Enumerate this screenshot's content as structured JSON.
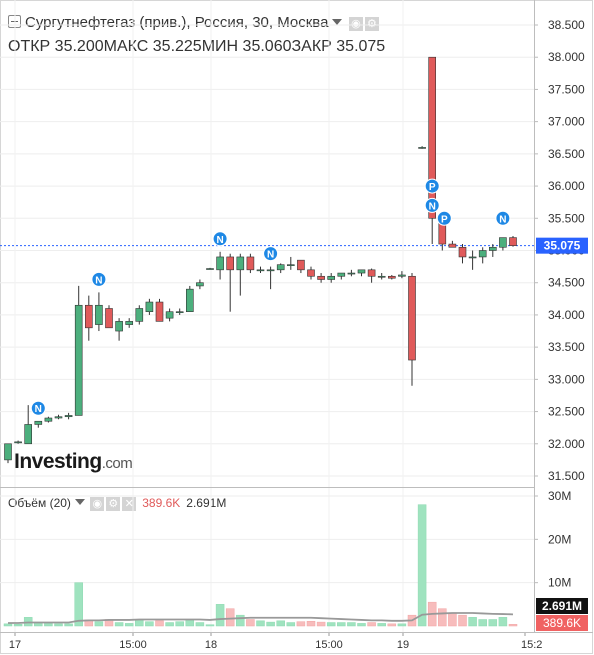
{
  "header": {
    "title": "Сургутнефтегаз (прив.), Россия, 30, Москва",
    "ohlc": [
      {
        "label": "ОТКР",
        "value": "35.200"
      },
      {
        "label": "МАКС",
        "value": "35.225"
      },
      {
        "label": "МИН",
        "value": "35.060"
      },
      {
        "label": "ЗАКР",
        "value": "35.075"
      }
    ]
  },
  "volume_legend": {
    "label": "Объём (20)",
    "value_a": "389.6K",
    "value_b": "2.691M"
  },
  "logo": {
    "text": "Investing",
    "suffix": ".com"
  },
  "colors": {
    "up": "#4caf7d",
    "down": "#e05a5a",
    "vol_up": "#9fe3bf",
    "vol_down": "#f7bcbc",
    "ma": "#999999",
    "last": "#2962ff"
  },
  "chart_data": [
    {
      "type": "candlestick",
      "price_axis": {
        "ticks": [
          "38.500",
          "38.000",
          "37.500",
          "37.000",
          "36.500",
          "36.000",
          "35.500",
          "35.000",
          "34.500",
          "34.000",
          "33.500",
          "33.000",
          "32.500",
          "32.000",
          "31.500"
        ],
        "range": [
          31.25,
          38.75
        ]
      },
      "time_axis": {
        "labels": [
          "17",
          "15:00",
          "18",
          "15:00",
          "19",
          "15:2"
        ]
      },
      "last_price": {
        "value": 35.075,
        "label": "35.075"
      },
      "candles": [
        {
          "o": 31.75,
          "h": 32.0,
          "l": 31.7,
          "c": 32.0
        },
        {
          "o": 32.03,
          "h": 32.05,
          "l": 32.0,
          "c": 32.03
        },
        {
          "o": 32.0,
          "h": 32.6,
          "l": 32.0,
          "c": 32.3
        },
        {
          "o": 32.3,
          "h": 32.35,
          "l": 32.25,
          "c": 32.35
        },
        {
          "o": 32.35,
          "h": 32.42,
          "l": 32.33,
          "c": 32.4
        },
        {
          "o": 32.4,
          "h": 32.45,
          "l": 32.38,
          "c": 32.42
        },
        {
          "o": 32.42,
          "h": 32.48,
          "l": 32.38,
          "c": 32.44
        },
        {
          "o": 32.44,
          "h": 34.45,
          "l": 32.44,
          "c": 34.15
        },
        {
          "o": 34.15,
          "h": 34.3,
          "l": 33.6,
          "c": 33.8
        },
        {
          "o": 33.85,
          "h": 34.35,
          "l": 33.75,
          "c": 34.15
        },
        {
          "o": 34.1,
          "h": 34.15,
          "l": 33.8,
          "c": 33.8
        },
        {
          "o": 33.75,
          "h": 33.95,
          "l": 33.6,
          "c": 33.9
        },
        {
          "o": 33.85,
          "h": 33.95,
          "l": 33.8,
          "c": 33.9
        },
        {
          "o": 33.9,
          "h": 34.15,
          "l": 33.85,
          "c": 34.1
        },
        {
          "o": 34.05,
          "h": 34.25,
          "l": 34.0,
          "c": 34.2
        },
        {
          "o": 34.2,
          "h": 34.25,
          "l": 33.9,
          "c": 33.9
        },
        {
          "o": 33.95,
          "h": 34.1,
          "l": 33.9,
          "c": 34.05
        },
        {
          "o": 34.05,
          "h": 34.1,
          "l": 34.0,
          "c": 34.05
        },
        {
          "o": 34.05,
          "h": 34.45,
          "l": 34.05,
          "c": 34.4
        },
        {
          "o": 34.45,
          "h": 34.55,
          "l": 34.4,
          "c": 34.5
        },
        {
          "o": 34.72,
          "h": 34.73,
          "l": 34.71,
          "c": 34.72
        },
        {
          "o": 34.7,
          "h": 34.98,
          "l": 34.55,
          "c": 34.9
        },
        {
          "o": 34.9,
          "h": 34.95,
          "l": 34.05,
          "c": 34.7
        },
        {
          "o": 34.7,
          "h": 34.95,
          "l": 34.3,
          "c": 34.9
        },
        {
          "o": 34.9,
          "h": 34.95,
          "l": 34.65,
          "c": 34.7
        },
        {
          "o": 34.7,
          "h": 34.75,
          "l": 34.65,
          "c": 34.7
        },
        {
          "o": 34.7,
          "h": 34.75,
          "l": 34.4,
          "c": 34.7
        },
        {
          "o": 34.7,
          "h": 34.8,
          "l": 34.65,
          "c": 34.78
        },
        {
          "o": 34.78,
          "h": 34.9,
          "l": 34.7,
          "c": 34.78
        },
        {
          "o": 34.85,
          "h": 34.85,
          "l": 34.65,
          "c": 34.7
        },
        {
          "o": 34.7,
          "h": 34.75,
          "l": 34.55,
          "c": 34.6
        },
        {
          "o": 34.6,
          "h": 34.65,
          "l": 34.5,
          "c": 34.55
        },
        {
          "o": 34.55,
          "h": 34.65,
          "l": 34.5,
          "c": 34.6
        },
        {
          "o": 34.6,
          "h": 34.65,
          "l": 34.55,
          "c": 34.65
        },
        {
          "o": 34.65,
          "h": 34.7,
          "l": 34.6,
          "c": 34.65
        },
        {
          "o": 34.65,
          "h": 34.7,
          "l": 34.6,
          "c": 34.7
        },
        {
          "o": 34.7,
          "h": 34.72,
          "l": 34.5,
          "c": 34.6
        },
        {
          "o": 34.6,
          "h": 34.65,
          "l": 34.55,
          "c": 34.6
        },
        {
          "o": 34.6,
          "h": 34.62,
          "l": 34.55,
          "c": 34.57
        },
        {
          "o": 34.6,
          "h": 34.68,
          "l": 34.57,
          "c": 34.62
        },
        {
          "o": 34.6,
          "h": 34.65,
          "l": 32.9,
          "c": 33.3
        },
        {
          "o": 36.6,
          "h": 36.62,
          "l": 36.58,
          "c": 36.6
        },
        {
          "o": 38.0,
          "h": 38.0,
          "l": 35.1,
          "c": 35.5
        },
        {
          "o": 35.45,
          "h": 35.6,
          "l": 35.0,
          "c": 35.1
        },
        {
          "o": 35.1,
          "h": 35.15,
          "l": 35.05,
          "c": 35.05
        },
        {
          "o": 35.05,
          "h": 35.1,
          "l": 34.8,
          "c": 34.9
        },
        {
          "o": 34.9,
          "h": 35.0,
          "l": 34.7,
          "c": 34.9
        },
        {
          "o": 34.9,
          "h": 35.05,
          "l": 34.8,
          "c": 35.0
        },
        {
          "o": 35.0,
          "h": 35.1,
          "l": 34.9,
          "c": 35.05
        },
        {
          "o": 35.05,
          "h": 35.2,
          "l": 35.0,
          "c": 35.2
        },
        {
          "o": 35.2,
          "h": 35.225,
          "l": 35.06,
          "c": 35.075
        }
      ],
      "event_markers": [
        {
          "bar": 3,
          "label": "N"
        },
        {
          "bar": 9,
          "label": "N"
        },
        {
          "bar": 21,
          "label": "N"
        },
        {
          "bar": 26,
          "label": "N"
        },
        {
          "bar": 42,
          "label": "P",
          "above": 36.0
        },
        {
          "bar": 42,
          "label": "N",
          "above": 35.7
        },
        {
          "bar": 43,
          "label": "P",
          "above": 35.5
        },
        {
          "bar": 49,
          "label": "N",
          "above": 35.5
        }
      ]
    },
    {
      "type": "bar",
      "volume_axis": {
        "ticks": [
          "30M",
          "20M",
          "10M"
        ],
        "range": [
          0,
          31
        ]
      },
      "current_volume": {
        "value": 2.691,
        "label": "2.691M"
      },
      "current_volume_alt": {
        "value": 0.3896,
        "label": "389.6K"
      },
      "volumes": [
        0.5,
        0.4,
        2.0,
        0.9,
        0.6,
        0.5,
        0.5,
        10.0,
        1.4,
        1.0,
        1.5,
        0.8,
        0.6,
        1.4,
        1.0,
        1.2,
        0.8,
        1.0,
        1.5,
        0.8,
        0.3,
        5.0,
        4.0,
        2.5,
        1.5,
        1.2,
        0.9,
        1.2,
        0.8,
        1.0,
        1.1,
        0.9,
        0.8,
        0.8,
        0.8,
        0.6,
        0.8,
        0.6,
        0.5,
        0.5,
        2.5,
        28.0,
        5.5,
        4.0,
        3.0,
        2.5,
        2.0,
        1.5,
        1.5,
        2.0,
        0.3896
      ],
      "moving_average": [
        0.7,
        0.7,
        0.8,
        0.8,
        0.8,
        0.8,
        0.8,
        1.2,
        1.3,
        1.3,
        1.4,
        1.4,
        1.4,
        1.5,
        1.5,
        1.5,
        1.5,
        1.5,
        1.5,
        1.5,
        1.4,
        1.6,
        1.7,
        1.8,
        1.9,
        1.9,
        1.9,
        1.9,
        1.9,
        1.9,
        1.9,
        1.8,
        1.7,
        1.6,
        1.5,
        1.4,
        1.3,
        1.3,
        1.2,
        1.2,
        1.3,
        2.6,
        2.8,
        2.9,
        3.0,
        3.0,
        3.0,
        2.9,
        2.8,
        2.75,
        2.691
      ]
    }
  ]
}
